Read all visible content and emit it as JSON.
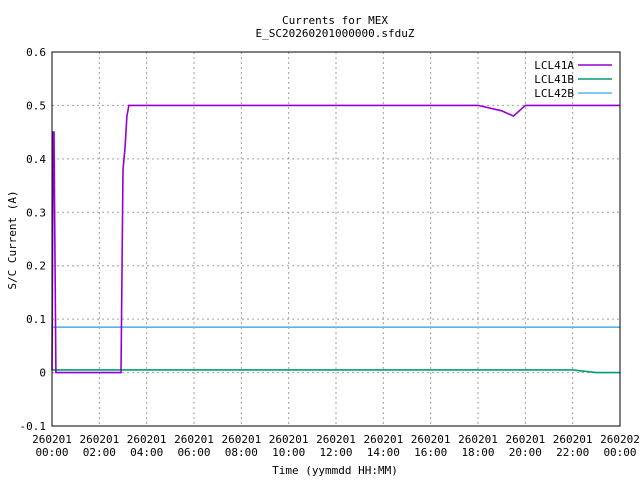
{
  "chart_data": {
    "type": "line",
    "title": "Currents for MEX",
    "subtitle": "E_SC20260201000000.sfduZ",
    "xlabel": "Time (yymmdd HH:MM)",
    "ylabel": "S/C Current (A)",
    "ylim": [
      -0.1,
      0.6
    ],
    "xlim_hours": [
      0,
      24
    ],
    "grid": true,
    "legend_position": "top-right",
    "y_ticks": [
      "-0.1",
      "0",
      "0.1",
      "0.2",
      "0.3",
      "0.4",
      "0.5",
      "0.6"
    ],
    "x_ticks": [
      {
        "top": "260201",
        "bottom": "00:00"
      },
      {
        "top": "260201",
        "bottom": "02:00"
      },
      {
        "top": "260201",
        "bottom": "04:00"
      },
      {
        "top": "260201",
        "bottom": "06:00"
      },
      {
        "top": "260201",
        "bottom": "08:00"
      },
      {
        "top": "260201",
        "bottom": "10:00"
      },
      {
        "top": "260201",
        "bottom": "12:00"
      },
      {
        "top": "260201",
        "bottom": "14:00"
      },
      {
        "top": "260201",
        "bottom": "16:00"
      },
      {
        "top": "260201",
        "bottom": "18:00"
      },
      {
        "top": "260201",
        "bottom": "20:00"
      },
      {
        "top": "260201",
        "bottom": "22:00"
      },
      {
        "top": "260202",
        "bottom": "00:00"
      }
    ],
    "series": [
      {
        "name": "LCL41A",
        "color": "#9400d3",
        "x": [
          "00:00",
          "00:03",
          "00:05",
          "00:10",
          "01:00",
          "02:00",
          "02:55",
          "03:00",
          "03:05",
          "03:10",
          "03:15",
          "03:30",
          "04:00",
          "06:00",
          "08:00",
          "10:00",
          "12:00",
          "14:00",
          "16:00",
          "18:00",
          "19:00",
          "19:30",
          "20:00",
          "21:00",
          "22:00",
          "23:00",
          "24:00"
        ],
        "y": [
          0.005,
          0.45,
          0.45,
          0.0,
          0.0,
          0.0,
          0.0,
          0.38,
          0.42,
          0.48,
          0.5,
          0.5,
          0.5,
          0.5,
          0.5,
          0.5,
          0.5,
          0.5,
          0.5,
          0.5,
          0.49,
          0.48,
          0.5,
          0.5,
          0.5,
          0.5,
          0.5
        ]
      },
      {
        "name": "LCL41B",
        "color": "#009e73",
        "x": [
          "00:00",
          "02:00",
          "04:00",
          "06:00",
          "08:00",
          "10:00",
          "12:00",
          "14:00",
          "16:00",
          "18:00",
          "20:00",
          "22:00",
          "23:00",
          "24:00"
        ],
        "y": [
          0.005,
          0.005,
          0.005,
          0.005,
          0.005,
          0.005,
          0.005,
          0.005,
          0.005,
          0.005,
          0.005,
          0.005,
          0.0,
          0.0
        ]
      },
      {
        "name": "LCL42B",
        "color": "#56b4e9",
        "x": [
          "00:00",
          "02:00",
          "04:00",
          "06:00",
          "08:00",
          "10:00",
          "12:00",
          "14:00",
          "16:00",
          "18:00",
          "20:00",
          "22:00",
          "24:00"
        ],
        "y": [
          0.085,
          0.085,
          0.085,
          0.085,
          0.085,
          0.085,
          0.085,
          0.085,
          0.085,
          0.085,
          0.085,
          0.085,
          0.085
        ]
      }
    ]
  }
}
